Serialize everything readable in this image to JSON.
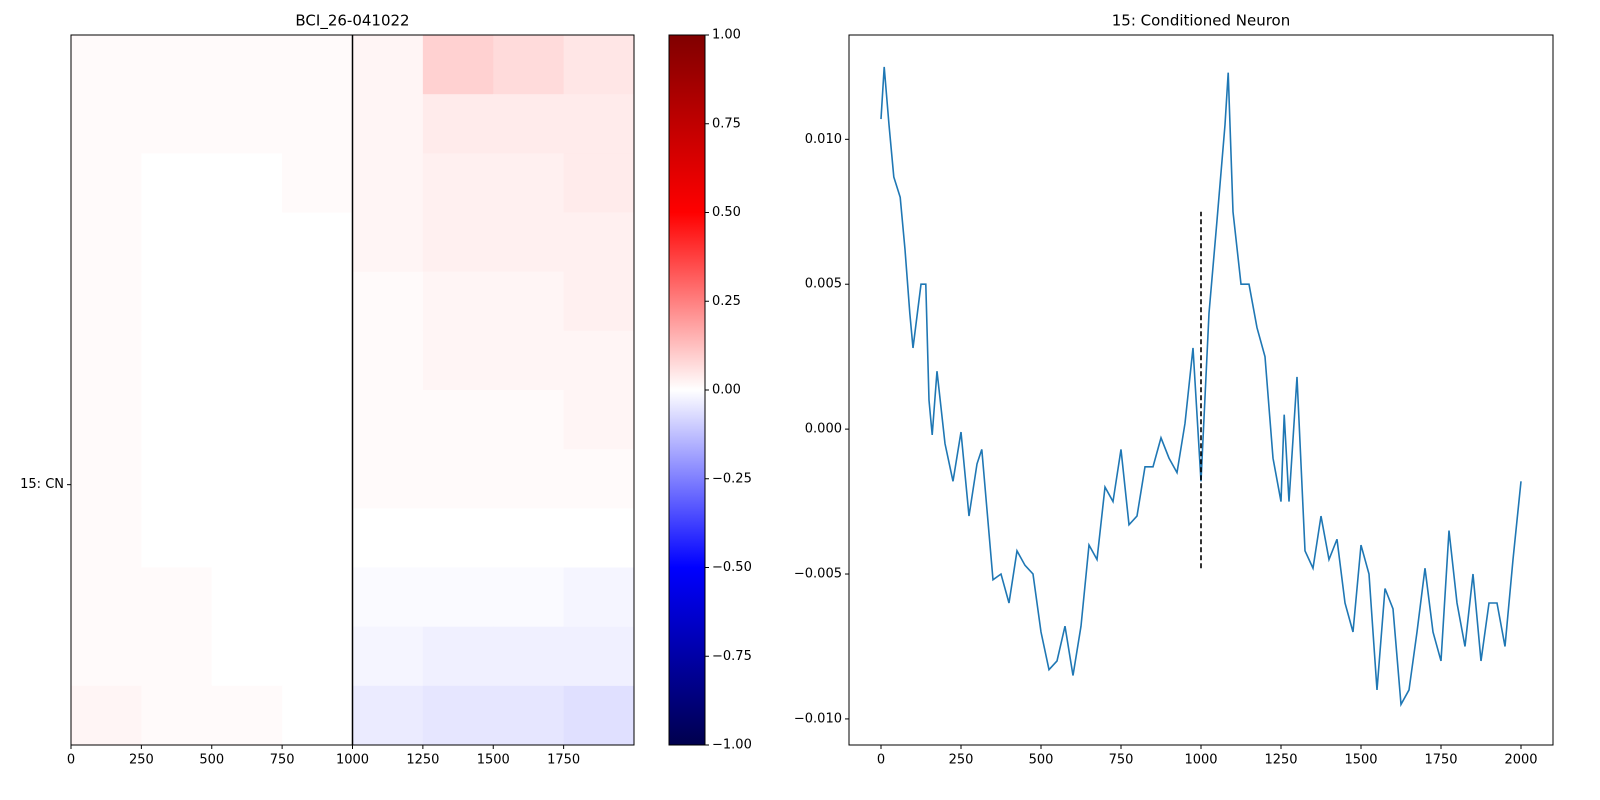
{
  "chart_data": [
    {
      "type": "heatmap",
      "title": "BCI_26-041022",
      "xlim": [
        0,
        2000
      ],
      "xticks": [
        0,
        250,
        500,
        750,
        1000,
        1250,
        1500,
        1750
      ],
      "ylim": [
        12,
        0
      ],
      "yticks": [
        {
          "value": 7.6,
          "label": "15: CN"
        }
      ],
      "vline": {
        "x": 1000,
        "color": "#000000"
      },
      "colormap": "seismic",
      "z": [
        [
          0.01,
          0.01,
          0.01,
          0.01,
          0.02,
          0.09,
          0.07,
          0.05
        ],
        [
          0.01,
          0.01,
          0.01,
          0.01,
          0.02,
          0.04,
          0.04,
          0.04
        ],
        [
          0.01,
          0,
          0,
          0.01,
          0.02,
          0.03,
          0.03,
          0.04
        ],
        [
          0.01,
          0,
          0,
          0,
          0.02,
          0.03,
          0.03,
          0.03
        ],
        [
          0.01,
          0,
          0,
          0,
          0.01,
          0.02,
          0.02,
          0.03
        ],
        [
          0.01,
          0,
          0,
          0,
          0.01,
          0.02,
          0.02,
          0.02
        ],
        [
          0.01,
          0,
          0,
          0,
          0.01,
          0.01,
          0.01,
          0.02
        ],
        [
          0.01,
          0,
          0,
          0,
          0.01,
          0.01,
          0.01,
          0.01
        ],
        [
          0.01,
          0,
          0,
          0,
          0,
          0,
          0,
          0
        ],
        [
          0.01,
          0.01,
          0,
          0,
          -0.01,
          -0.01,
          -0.01,
          -0.02
        ],
        [
          0.01,
          0.01,
          0,
          0,
          -0.02,
          -0.03,
          -0.03,
          -0.03
        ],
        [
          0.02,
          0.01,
          0.01,
          0,
          -0.04,
          -0.05,
          -0.05,
          -0.06
        ]
      ],
      "colorbar": {
        "lim": [
          -1,
          1
        ],
        "ticks": [
          {
            "value": -1,
            "label": "−1.00"
          },
          {
            "value": -0.75,
            "label": "−0.75"
          },
          {
            "value": -0.5,
            "label": "−0.50"
          },
          {
            "value": -0.25,
            "label": "−0.25"
          },
          {
            "value": 0,
            "label": "0.00"
          },
          {
            "value": 0.25,
            "label": "0.25"
          },
          {
            "value": 0.5,
            "label": "0.50"
          },
          {
            "value": 0.75,
            "label": "0.75"
          },
          {
            "value": 1,
            "label": "1.00"
          }
        ]
      }
    },
    {
      "type": "line",
      "title": "15: Conditioned Neuron",
      "xlim": [
        -100,
        2100
      ],
      "xticks": [
        0,
        250,
        500,
        750,
        1000,
        1250,
        1500,
        1750,
        2000
      ],
      "ylim": [
        -0.0109,
        0.0136
      ],
      "yticks": [
        {
          "value": -0.01,
          "label": "−0.010"
        },
        {
          "value": -0.005,
          "label": "−0.005"
        },
        {
          "value": 0,
          "label": "0.000"
        },
        {
          "value": 0.005,
          "label": "0.005"
        },
        {
          "value": 0.01,
          "label": "0.010"
        }
      ],
      "vline": {
        "x": 1000,
        "ymin": -0.0048,
        "ymax": 0.0075,
        "color": "#000000"
      },
      "series": [
        {
          "color": "#1f77b4",
          "x": [
            0,
            10,
            25,
            40,
            60,
            75,
            90,
            100,
            125,
            140,
            150,
            160,
            175,
            200,
            225,
            250,
            275,
            300,
            315,
            350,
            375,
            400,
            425,
            450,
            475,
            500,
            525,
            550,
            575,
            600,
            625,
            650,
            675,
            700,
            725,
            750,
            775,
            800,
            825,
            850,
            875,
            900,
            925,
            950,
            975,
            1000,
            1025,
            1050,
            1075,
            1085,
            1100,
            1125,
            1150,
            1175,
            1200,
            1225,
            1250,
            1260,
            1275,
            1300,
            1325,
            1350,
            1375,
            1400,
            1425,
            1450,
            1475,
            1500,
            1525,
            1550,
            1575,
            1600,
            1625,
            1650,
            1675,
            1700,
            1725,
            1750,
            1775,
            1800,
            1825,
            1850,
            1875,
            1900,
            1925,
            1950,
            1975,
            2000
          ],
          "values": [
            0.0107,
            0.0125,
            0.0105,
            0.0087,
            0.008,
            0.0062,
            0.004,
            0.0028,
            0.005,
            0.005,
            0.001,
            -0.0002,
            0.002,
            -0.0005,
            -0.0018,
            -0.0001,
            -0.003,
            -0.0012,
            -0.0007,
            -0.0052,
            -0.005,
            -0.006,
            -0.0042,
            -0.0047,
            -0.005,
            -0.007,
            -0.0083,
            -0.008,
            -0.0068,
            -0.0085,
            -0.0068,
            -0.004,
            -0.0045,
            -0.002,
            -0.0025,
            -0.0007,
            -0.0033,
            -0.003,
            -0.0013,
            -0.0013,
            -0.0003,
            -0.001,
            -0.0015,
            0.0002,
            0.0028,
            -0.0018,
            0.004,
            0.0072,
            0.0105,
            0.0123,
            0.0075,
            0.005,
            0.005,
            0.0035,
            0.0025,
            -0.001,
            -0.0025,
            0.0005,
            -0.0025,
            0.0018,
            -0.0042,
            -0.0048,
            -0.003,
            -0.0045,
            -0.0038,
            -0.006,
            -0.007,
            -0.004,
            -0.005,
            -0.009,
            -0.0055,
            -0.0062,
            -0.0095,
            -0.009,
            -0.007,
            -0.0048,
            -0.007,
            -0.008,
            -0.0035,
            -0.006,
            -0.0075,
            -0.005,
            -0.008,
            -0.006,
            -0.006,
            -0.0075,
            -0.0045,
            -0.0018
          ]
        }
      ]
    }
  ]
}
